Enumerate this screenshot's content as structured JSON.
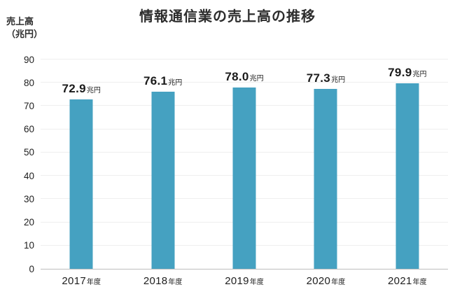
{
  "chart_data": {
    "type": "bar",
    "title": "情報通信業の売上高の推移",
    "ylabel": "売上高（兆円）",
    "y_axis_unit_lines": [
      "売上高",
      "（兆円）"
    ],
    "xlabel": "",
    "categories": [
      "2017年度",
      "2018年度",
      "2019年度",
      "2020年度",
      "2021年度"
    ],
    "category_years": [
      "2017",
      "2018",
      "2019",
      "2020",
      "2021"
    ],
    "category_suffix": "年度",
    "values": [
      72.9,
      76.1,
      78.0,
      77.3,
      79.9
    ],
    "value_labels": [
      "72.9",
      "76.1",
      "78.0",
      "77.3",
      "79.9"
    ],
    "value_suffix": "兆円",
    "ylim": [
      0,
      90
    ],
    "y_ticks": [
      0,
      10,
      20,
      30,
      40,
      50,
      60,
      70,
      80,
      90
    ],
    "grid": "horizontal",
    "legend": "none",
    "bar_color": "#45a1c1",
    "gridline_color": "#efefef",
    "baseline_color": "#bdbdbd"
  }
}
